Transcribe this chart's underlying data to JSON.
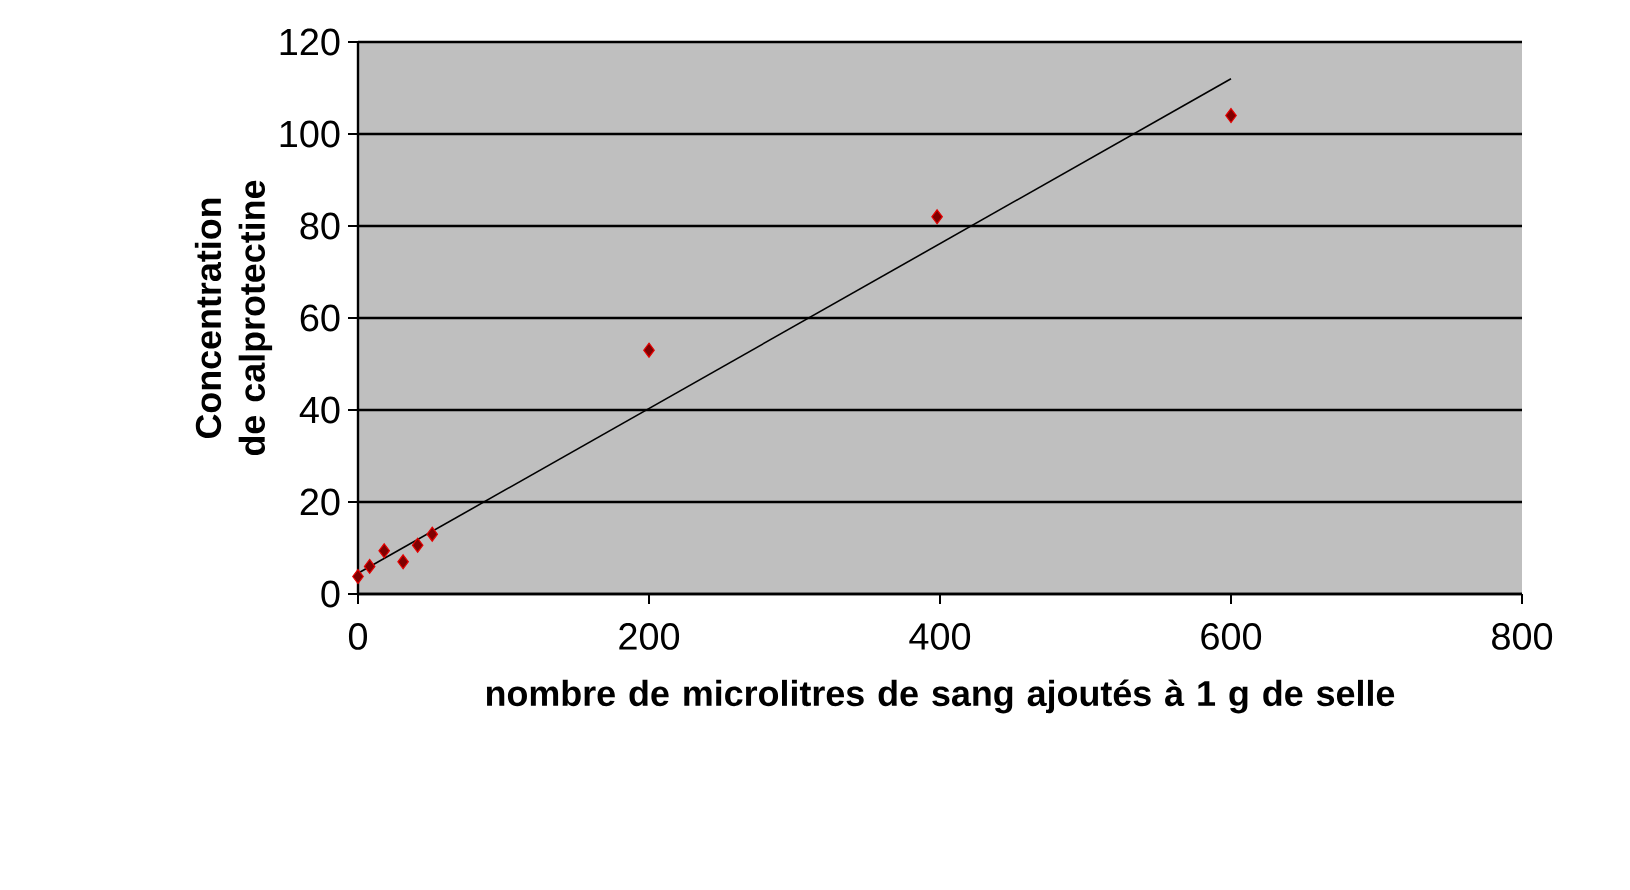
{
  "chart_data": {
    "type": "scatter",
    "xlabel": "nombre de microlitres de sang ajoutés à 1 g de selle",
    "ylabel": "Concentration de calprotectine",
    "xlim": [
      0,
      800
    ],
    "xticks": [
      0,
      200,
      400,
      600,
      800
    ],
    "ylim": [
      0,
      120
    ],
    "yticks": [
      0,
      20,
      40,
      60,
      80,
      100,
      120
    ],
    "grid": "y",
    "series": [
      {
        "color": "#800000",
        "marker": "diamond",
        "x": [
          0,
          8,
          18,
          31,
          41,
          51,
          200,
          398,
          600
        ],
        "values": [
          3.8,
          6,
          9.4,
          7,
          10.6,
          13,
          53,
          82,
          104
        ]
      },
      {
        "type": "line",
        "color": "#000000",
        "x": [
          0,
          600
        ],
        "values": [
          4.5,
          112
        ]
      }
    ]
  }
}
